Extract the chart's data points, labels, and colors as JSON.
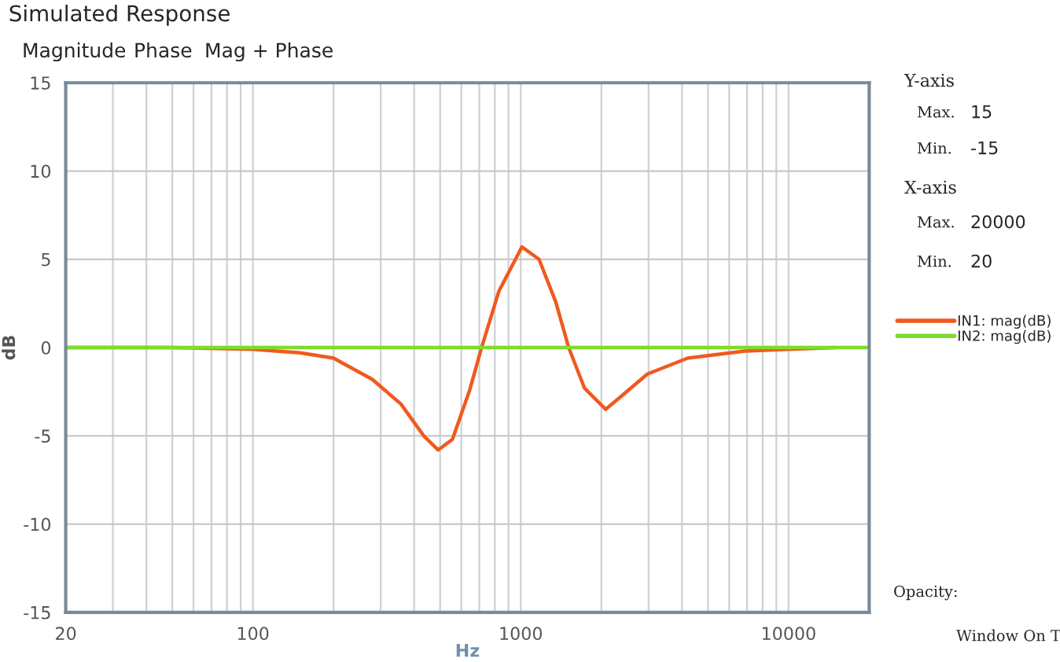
{
  "chart_data": {
    "type": "line",
    "title": "Simulated Response",
    "xlabel": "Hz",
    "ylabel": "dB",
    "log": "x",
    "x": [
      20,
      50,
      100,
      150,
      200,
      279,
      357,
      434,
      492,
      556,
      645,
      714,
      829,
      1010,
      1170,
      1350,
      1510,
      1730,
      2075,
      2440,
      2970,
      4200,
      6870,
      10000,
      15000
    ],
    "series": [
      {
        "name": "IN1: mag(dB)",
        "color": "#f05a1e",
        "values": [
          0,
          0,
          -0.1,
          -0.3,
          -0.6,
          -1.8,
          -3.2,
          -5.0,
          -5.8,
          -5.2,
          -2.4,
          0,
          3.2,
          5.7,
          5.0,
          2.6,
          0,
          -2.3,
          -3.5,
          -2.6,
          -1.5,
          -0.6,
          -0.2,
          -0.1,
          0
        ]
      },
      {
        "name": "IN2: mag(dB)",
        "color": "#7fdc2a",
        "x": [
          20,
          20000
        ],
        "values": [
          0,
          0
        ]
      }
    ],
    "xlim": [
      20,
      20000
    ],
    "ylim": [
      -15,
      15
    ],
    "xticks": [
      20,
      100,
      1000,
      10000
    ],
    "yticks": [
      -15,
      -10,
      -5,
      0,
      5,
      10,
      15
    ],
    "grid": true,
    "legend": "right",
    "marker": "none",
    "line_style": "solid",
    "annotations": [
      "Magnitude",
      "Phase",
      "Mag + Phase",
      "Y-axis",
      "Max.",
      "15",
      "Min.",
      "-15",
      "X-axis",
      "Max.",
      "20000",
      "Min.",
      "20",
      "Opacity:",
      "Window On T"
    ]
  }
}
